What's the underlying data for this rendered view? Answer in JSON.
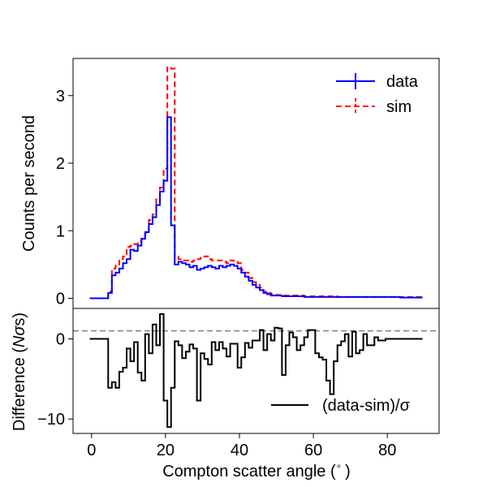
{
  "chart_data": [
    {
      "type": "line",
      "panel": "top",
      "drawstyle": "steps-mid",
      "ylabel": "Counts per second",
      "xlim": [
        -5,
        94
      ],
      "ylim": [
        -0.15,
        3.55
      ],
      "yticks": [
        0,
        1,
        2,
        3
      ],
      "legend": {
        "placement": "top-right",
        "entries": [
          "data",
          "sim"
        ]
      },
      "x": [
        0,
        1,
        2,
        3,
        4,
        5,
        6,
        7,
        8,
        9,
        10,
        11,
        12,
        13,
        14,
        15,
        16,
        17,
        18,
        19,
        20,
        21,
        22,
        23,
        24,
        25,
        26,
        27,
        28,
        29,
        30,
        31,
        32,
        33,
        34,
        35,
        36,
        37,
        38,
        39,
        40,
        41,
        42,
        43,
        44,
        45,
        46,
        47,
        48,
        49,
        50,
        51,
        52,
        53,
        54,
        55,
        56,
        57,
        58,
        59,
        60,
        61,
        62,
        63,
        64,
        65,
        66,
        67,
        68,
        69,
        70,
        71,
        72,
        73,
        74,
        75,
        76,
        77,
        78,
        79,
        80,
        81,
        82,
        83,
        84,
        85,
        86,
        87,
        88,
        89
      ],
      "series": [
        {
          "name": "data",
          "color": "#0000ff",
          "linestyle": "solid",
          "values": [
            0,
            0,
            0,
            0,
            0,
            0.08,
            0.34,
            0.38,
            0.44,
            0.52,
            0.58,
            0.72,
            0.7,
            0.78,
            0.88,
            0.98,
            1.1,
            1.2,
            1.38,
            1.58,
            1.74,
            2.68,
            1.08,
            0.5,
            0.54,
            0.52,
            0.5,
            0.46,
            0.48,
            0.42,
            0.44,
            0.46,
            0.48,
            0.46,
            0.44,
            0.48,
            0.46,
            0.48,
            0.5,
            0.48,
            0.44,
            0.38,
            0.32,
            0.26,
            0.2,
            0.16,
            0.12,
            0.08,
            0.06,
            0.04,
            0.04,
            0.04,
            0.03,
            0.03,
            0.03,
            0.03,
            0.03,
            0.03,
            0.02,
            0.02,
            0.02,
            0.02,
            0.02,
            0.02,
            0.02,
            0.02,
            0.02,
            0.02,
            0.02,
            0.02,
            0.02,
            0.02,
            0.02,
            0.02,
            0.02,
            0.02,
            0.02,
            0.02,
            0.02,
            0.02,
            0.02,
            0.02,
            0.02,
            0.02,
            0.01,
            0.01,
            0.01,
            0.01,
            0.01,
            0.01
          ]
        },
        {
          "name": "sim",
          "color": "#ff0000",
          "linestyle": "dashed",
          "values": [
            0,
            0,
            0,
            0,
            0,
            0.1,
            0.44,
            0.48,
            0.58,
            0.62,
            0.76,
            0.78,
            0.8,
            0.84,
            0.88,
            0.96,
            1.16,
            1.24,
            1.48,
            1.64,
            1.92,
            3.42,
            3.4,
            0.62,
            0.58,
            0.56,
            0.56,
            0.54,
            0.56,
            0.58,
            0.6,
            0.62,
            0.58,
            0.56,
            0.56,
            0.56,
            0.54,
            0.52,
            0.56,
            0.54,
            0.52,
            0.42,
            0.38,
            0.3,
            0.24,
            0.2,
            0.16,
            0.1,
            0.08,
            0.06,
            0.05,
            0.05,
            0.04,
            0.04,
            0.04,
            0.04,
            0.04,
            0.04,
            0.03,
            0.03,
            0.03,
            0.03,
            0.03,
            0.03,
            0.03,
            0.03,
            0.03,
            0.02,
            0.02,
            0.02,
            0.02,
            0.02,
            0.02,
            0.02,
            0.02,
            0.02,
            0.02,
            0.02,
            0.02,
            0.02,
            0.02,
            0.02,
            0.02,
            0.02,
            0.02,
            0.02,
            0.02,
            0.02,
            0.02,
            0.02
          ]
        }
      ]
    },
    {
      "type": "line",
      "panel": "bottom",
      "drawstyle": "steps-mid",
      "xlabel": "Compton scatter angle ($^\\circ$)",
      "xlabel_main": "Compton scatter angle (",
      "xlabel_degree": "∘",
      "xlabel_close": ")",
      "ylabel": "Difference ($N\\sigma$s)",
      "ylabel_main": "Difference (",
      "ylabel_italic": "Nσ",
      "ylabel_end": "s)",
      "xlim": [
        -5,
        94
      ],
      "ylim": [
        -11.8,
        3.8
      ],
      "xticks": [
        0,
        20,
        40,
        60,
        80
      ],
      "yticks": [
        -10,
        0
      ],
      "reference_line": {
        "y": 1,
        "color": "#808080",
        "linestyle": "dashed"
      },
      "legend": {
        "placement": "bottom-right",
        "entries": [
          "(data-sim)/σ"
        ]
      },
      "x": [
        0,
        1,
        2,
        3,
        4,
        5,
        6,
        7,
        8,
        9,
        10,
        11,
        12,
        13,
        14,
        15,
        16,
        17,
        18,
        19,
        20,
        21,
        22,
        23,
        24,
        25,
        26,
        27,
        28,
        29,
        30,
        31,
        32,
        33,
        34,
        35,
        36,
        37,
        38,
        39,
        40,
        41,
        42,
        43,
        44,
        45,
        46,
        47,
        48,
        49,
        50,
        51,
        52,
        53,
        54,
        55,
        56,
        57,
        58,
        59,
        60,
        61,
        62,
        63,
        64,
        65,
        66,
        67,
        68,
        69,
        70,
        71,
        72,
        73,
        74,
        75,
        76,
        77,
        78,
        79,
        80,
        81,
        82,
        83,
        84,
        85,
        86,
        87,
        88,
        89
      ],
      "series": [
        {
          "name": "(data-sim)/σ",
          "color": "#000000",
          "linestyle": "solid",
          "values": [
            0,
            0,
            0,
            0,
            0,
            -6.1,
            -5.4,
            -6.1,
            -4.1,
            -3.6,
            -1.2,
            -2.8,
            -0.4,
            -4.2,
            -5.2,
            0.6,
            -1.8,
            1.8,
            -0.8,
            3.1,
            -7.7,
            -11.0,
            -6.1,
            -0.3,
            -0.8,
            -2.4,
            -1.6,
            -0.7,
            -1.2,
            -7.7,
            -1.8,
            -2.5,
            -3.2,
            -0.4,
            -1.4,
            -0.4,
            -1.2,
            -2.2,
            -0.6,
            -0.6,
            -3.6,
            -2.3,
            -0.5,
            -1.1,
            -0.2,
            -0.2,
            1.1,
            -1.4,
            0.6,
            -0.2,
            1.4,
            1.3,
            -4.5,
            -0.8,
            0.8,
            0.2,
            -1.4,
            -0.8,
            0.2,
            1.1,
            1.1,
            -1.8,
            -2.3,
            -2.6,
            -5.2,
            -6.9,
            -2.8,
            -0.8,
            -0.3,
            0.6,
            -2.2,
            0.9,
            -1.8,
            -1.4,
            0.6,
            -0.8,
            -0.8,
            0.2,
            -0.2,
            -0.2,
            0,
            0,
            0,
            0,
            0,
            0,
            0,
            0,
            0,
            0
          ]
        }
      ]
    }
  ]
}
